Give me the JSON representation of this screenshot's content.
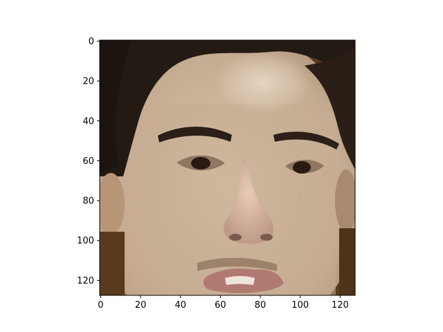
{
  "chart_data": {
    "type": "image",
    "title": "",
    "xlabel": "",
    "ylabel": "",
    "image_extent": {
      "x": [
        0,
        128
      ],
      "y": [
        0,
        128
      ]
    },
    "y_axis_inverted": true,
    "xlim": [
      -0.5,
      127.5
    ],
    "ylim": [
      127.5,
      -0.5
    ],
    "x_ticks": [
      0,
      20,
      40,
      60,
      80,
      100,
      120
    ],
    "y_ticks": [
      0,
      20,
      40,
      60,
      80,
      100,
      120
    ],
    "grid": false,
    "image_content": "grayscale-toned close-up photograph of a human face (forehead, eyebrows, eyes, nose, upper lip), dark hair at top and sides",
    "colors": {
      "hair": "#241a14",
      "skin": "#c2aa8f",
      "skin_light": "#d9c4ab",
      "shadow": "#8a6f58",
      "background_brown": "#5a3a1c",
      "lips": "#b07a72"
    }
  }
}
